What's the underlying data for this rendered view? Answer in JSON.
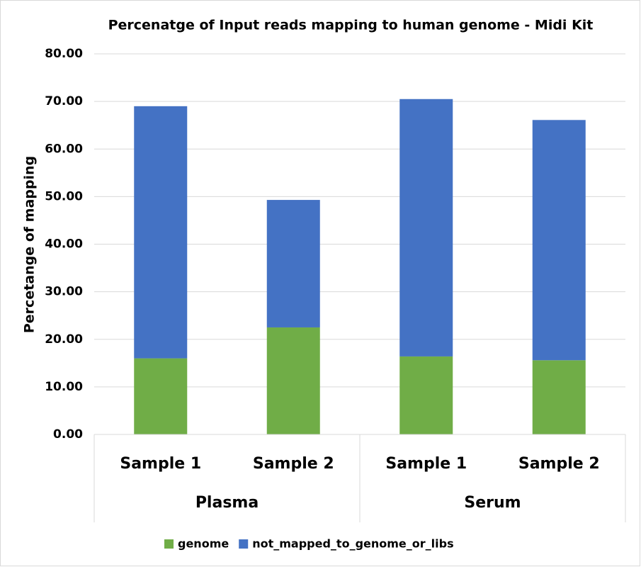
{
  "chart_data": {
    "type": "stacked_bar",
    "title": "Percenatge of Input reads mapping to human genome - Midi Kit",
    "y_label": "Percetange of mapping",
    "categories": [
      "Sample 1",
      "Sample 2",
      "Sample 1",
      "Sample 2"
    ],
    "groups": [
      "Plasma",
      "Serum"
    ],
    "series": [
      {
        "name": "genome",
        "color": "#70ad47",
        "values": [
          16.0,
          22.5,
          16.4,
          15.6
        ]
      },
      {
        "name": "not_mapped_to_genome_or_libs",
        "color": "#4472c4",
        "values": [
          53.0,
          26.8,
          54.1,
          50.5
        ]
      }
    ],
    "ylim": [
      0,
      80
    ],
    "yticks": [
      {
        "value": 0,
        "label": "0.00"
      },
      {
        "value": 10,
        "label": "10.00"
      },
      {
        "value": 20,
        "label": "20.00"
      },
      {
        "value": 30,
        "label": "30.00"
      },
      {
        "value": 40,
        "label": "40.00"
      },
      {
        "value": 50,
        "label": "50.00"
      },
      {
        "value": 60,
        "label": "60.00"
      },
      {
        "value": 70,
        "label": "70.00"
      },
      {
        "value": 80,
        "label": "80.00"
      }
    ],
    "grid": true
  }
}
